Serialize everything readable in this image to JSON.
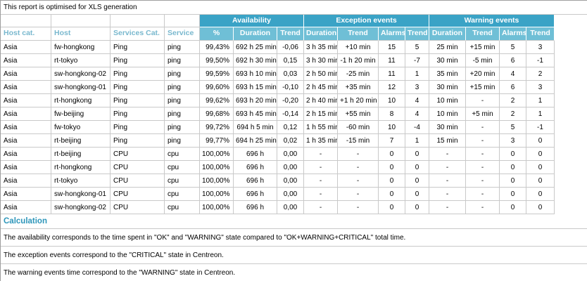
{
  "report": {
    "top_note": "This report is optimised for XLS generation",
    "calculation_title": "Calculation",
    "footnotes": [
      "The availability corresponds to the time spent in \"OK\" and \"WARNING\" state compared to \"OK+WARNING+CRITICAL\" total time.",
      "The exception events correspond to the \"CRITICAL\" state in Centreon.",
      "The warning events time correspond to the \"WARNING\" state in Centreon."
    ]
  },
  "table": {
    "groups": [
      {
        "label": "Availability"
      },
      {
        "label": "Exception events"
      },
      {
        "label": "Warning events"
      }
    ],
    "columns": [
      "Host cat.",
      "Host",
      "Services Cat.",
      "Service",
      "%",
      "Duration",
      "Trend",
      "Duration",
      "Trend",
      "Alarms",
      "Trend",
      "Duration",
      "Trend",
      "Alarms",
      "Trend"
    ],
    "rows": [
      [
        "Asia",
        "fw-hongkong",
        "Ping",
        "ping",
        "99,43%",
        "692 h 25 min",
        "-0,06",
        "3 h 35 min",
        "+10 min",
        "15",
        "5",
        "25 min",
        "+15 min",
        "5",
        "3"
      ],
      [
        "Asia",
        "rt-tokyo",
        "Ping",
        "ping",
        "99,50%",
        "692 h 30 min",
        "0,15",
        "3 h 30 min",
        "-1 h 20 min",
        "11",
        "-7",
        "30 min",
        "-5 min",
        "6",
        "-1"
      ],
      [
        "Asia",
        "sw-hongkong-02",
        "Ping",
        "ping",
        "99,59%",
        "693 h 10 min",
        "0,03",
        "2 h 50 min",
        "-25 min",
        "11",
        "1",
        "35 min",
        "+20 min",
        "4",
        "2"
      ],
      [
        "Asia",
        "sw-hongkong-01",
        "Ping",
        "ping",
        "99,60%",
        "693 h 15 min",
        "-0,10",
        "2 h 45 min",
        "+35 min",
        "12",
        "3",
        "30 min",
        "+15 min",
        "6",
        "3"
      ],
      [
        "Asia",
        "rt-hongkong",
        "Ping",
        "ping",
        "99,62%",
        "693 h 20 min",
        "-0,20",
        "2 h 40 min",
        "+1 h 20 min",
        "10",
        "4",
        "10 min",
        "-",
        "2",
        "1"
      ],
      [
        "Asia",
        "fw-beijing",
        "Ping",
        "ping",
        "99,68%",
        "693 h 45 min",
        "-0,14",
        "2 h 15 min",
        "+55 min",
        "8",
        "4",
        "10 min",
        "+5 min",
        "2",
        "1"
      ],
      [
        "Asia",
        "fw-tokyo",
        "Ping",
        "ping",
        "99,72%",
        "694 h 5 min",
        "0,12",
        "1 h 55 min",
        "-60 min",
        "10",
        "-4",
        "30 min",
        "-",
        "5",
        "-1"
      ],
      [
        "Asia",
        "rt-beijing",
        "Ping",
        "ping",
        "99,77%",
        "694 h 25 min",
        "0,02",
        "1 h 35 min",
        "-15 min",
        "7",
        "1",
        "15 min",
        "-",
        "3",
        "0"
      ],
      [
        "Asia",
        "rt-beijing",
        "CPU",
        "cpu",
        "100,00%",
        "696 h",
        "0,00",
        "-",
        "-",
        "0",
        "0",
        "-",
        "-",
        "0",
        "0"
      ],
      [
        "Asia",
        "rt-hongkong",
        "CPU",
        "cpu",
        "100,00%",
        "696 h",
        "0,00",
        "-",
        "-",
        "0",
        "0",
        "-",
        "-",
        "0",
        "0"
      ],
      [
        "Asia",
        "rt-tokyo",
        "CPU",
        "cpu",
        "100,00%",
        "696 h",
        "0,00",
        "-",
        "-",
        "0",
        "0",
        "-",
        "-",
        "0",
        "0"
      ],
      [
        "Asia",
        "sw-hongkong-01",
        "CPU",
        "cpu",
        "100,00%",
        "696 h",
        "0,00",
        "-",
        "-",
        "0",
        "0",
        "-",
        "-",
        "0",
        "0"
      ],
      [
        "Asia",
        "sw-hongkong-02",
        "CPU",
        "cpu",
        "100,00%",
        "696 h",
        "0,00",
        "-",
        "-",
        "0",
        "0",
        "-",
        "-",
        "0",
        "0"
      ]
    ]
  },
  "colors": {
    "header_primary": "#3aa3c6",
    "header_secondary": "#6fbfd6",
    "header_label_text": "#79b8ce",
    "calculation_text": "#2d96ba",
    "grid_line": "#c9c9c9"
  }
}
